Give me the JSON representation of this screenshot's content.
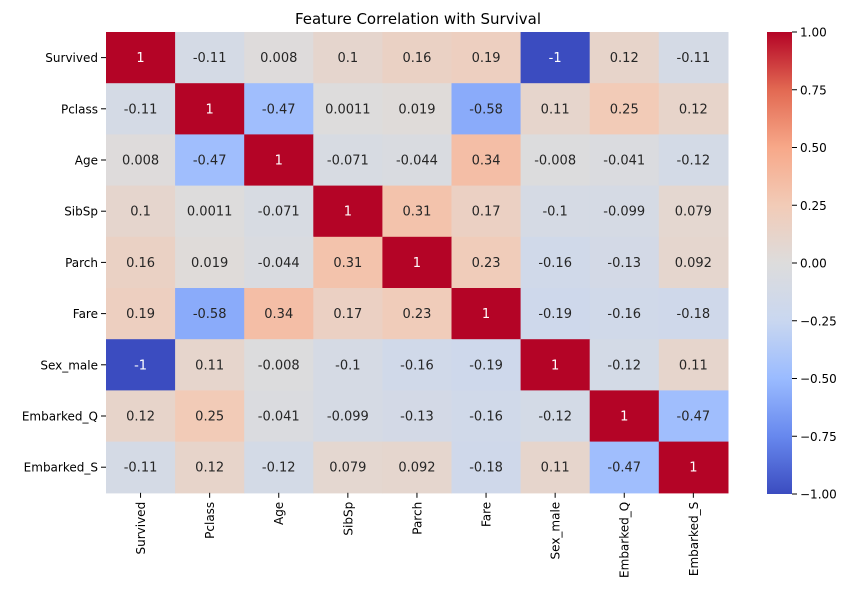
{
  "chart_data": {
    "type": "heatmap",
    "title": "Feature Correlation with Survival",
    "rows": [
      "Survived",
      "Pclass",
      "Age",
      "SibSp",
      "Parch",
      "Fare",
      "Sex_male",
      "Embarked_Q",
      "Embarked_S"
    ],
    "cols": [
      "Survived",
      "Pclass",
      "Age",
      "SibSp",
      "Parch",
      "Fare",
      "Sex_male",
      "Embarked_Q",
      "Embarked_S"
    ],
    "values": [
      [
        1,
        -0.11,
        0.008,
        0.1,
        0.16,
        0.19,
        -1,
        0.12,
        -0.11
      ],
      [
        -0.11,
        1,
        -0.47,
        0.0011,
        0.019,
        -0.58,
        0.11,
        0.25,
        0.12
      ],
      [
        0.008,
        -0.47,
        1,
        -0.071,
        -0.044,
        0.34,
        -0.008,
        -0.041,
        -0.12
      ],
      [
        0.1,
        0.0011,
        -0.071,
        1,
        0.31,
        0.17,
        -0.1,
        -0.099,
        0.079
      ],
      [
        0.16,
        0.019,
        -0.044,
        0.31,
        1,
        0.23,
        -0.16,
        -0.13,
        0.092
      ],
      [
        0.19,
        -0.58,
        0.34,
        0.17,
        0.23,
        1,
        -0.19,
        -0.16,
        -0.18
      ],
      [
        -1,
        0.11,
        -0.008,
        -0.1,
        -0.16,
        -0.19,
        1,
        -0.12,
        0.11
      ],
      [
        0.12,
        0.25,
        -0.041,
        -0.099,
        -0.13,
        -0.16,
        -0.12,
        1,
        -0.47
      ],
      [
        -0.11,
        0.12,
        -0.12,
        0.079,
        0.092,
        -0.18,
        0.11,
        -0.47,
        1
      ]
    ],
    "labels": [
      [
        "1",
        "-0.11",
        "0.008",
        "0.1",
        "0.16",
        "0.19",
        "-1",
        "0.12",
        "-0.11"
      ],
      [
        "-0.11",
        "1",
        "-0.47",
        "0.0011",
        "0.019",
        "-0.58",
        "0.11",
        "0.25",
        "0.12"
      ],
      [
        "0.008",
        "-0.47",
        "1",
        "-0.071",
        "-0.044",
        "0.34",
        "-0.008",
        "-0.041",
        "-0.12"
      ],
      [
        "0.1",
        "0.0011",
        "-0.071",
        "1",
        "0.31",
        "0.17",
        "-0.1",
        "-0.099",
        "0.079"
      ],
      [
        "0.16",
        "0.019",
        "-0.044",
        "0.31",
        "1",
        "0.23",
        "-0.16",
        "-0.13",
        "0.092"
      ],
      [
        "0.19",
        "-0.58",
        "0.34",
        "0.17",
        "0.23",
        "1",
        "-0.19",
        "-0.16",
        "-0.18"
      ],
      [
        "-1",
        "0.11",
        "-0.008",
        "-0.1",
        "-0.16",
        "-0.19",
        "1",
        "-0.12",
        "0.11"
      ],
      [
        "0.12",
        "0.25",
        "-0.041",
        "-0.099",
        "-0.13",
        "-0.16",
        "-0.12",
        "1",
        "-0.47"
      ],
      [
        "-0.11",
        "0.12",
        "-0.12",
        "0.079",
        "0.092",
        "-0.18",
        "0.11",
        "-0.47",
        "1"
      ]
    ],
    "colormap": "coolwarm",
    "vmin": -1,
    "vmax": 1,
    "colorbar_ticks": [
      1.0,
      0.75,
      0.5,
      0.25,
      0.0,
      -0.25,
      -0.5,
      -0.75,
      -1.0
    ],
    "colorbar_tick_labels": [
      "1.00",
      "0.75",
      "0.50",
      "0.25",
      "0.00",
      "−0.25",
      "−0.50",
      "−0.75",
      "−1.00"
    ],
    "colormap_stops": [
      "#3b4cc0",
      "#6788ee",
      "#9abbff",
      "#c9d7f0",
      "#dddcdc",
      "#f2cbb7",
      "#f7a889",
      "#e26952",
      "#b40426"
    ]
  }
}
